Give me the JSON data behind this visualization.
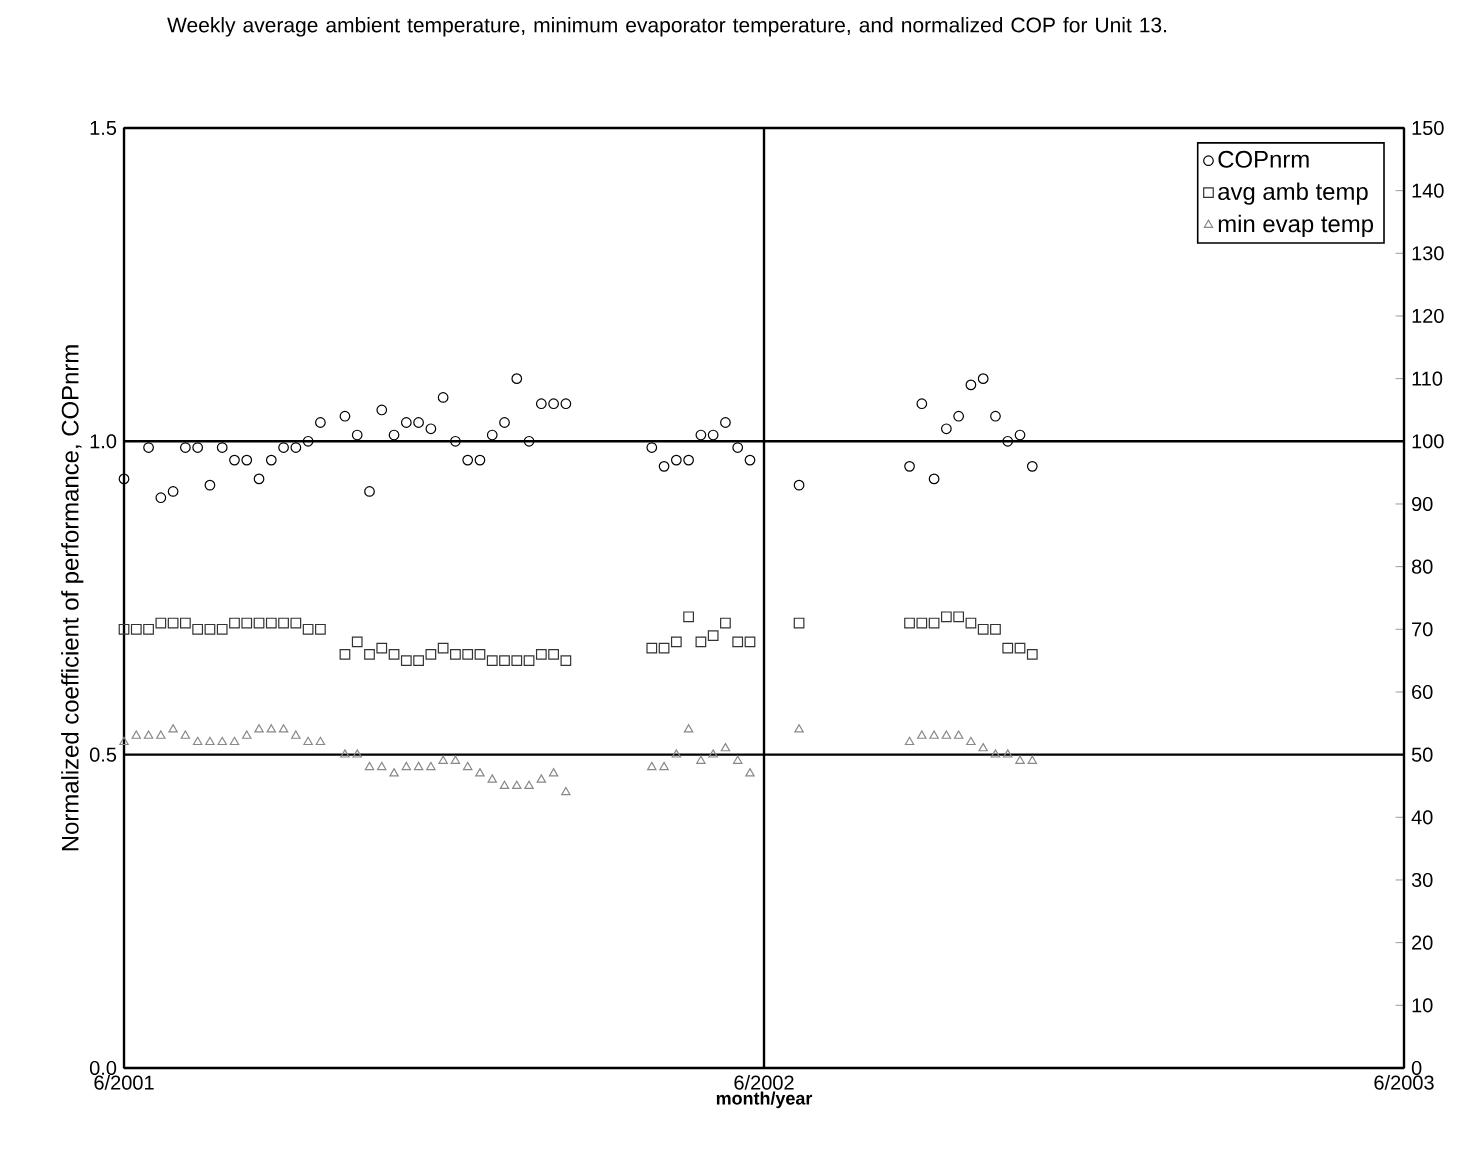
{
  "chart_data": {
    "type": "scatter",
    "title": "Weekly average ambient temperature, minimum evaporator temperature, and normalized COP for Unit 13.",
    "xlabel": "month/year",
    "ylabel": "Normalized coefficient of performance, COPnrm",
    "xlim": [
      "2001-06-01",
      "2003-06-01"
    ],
    "xticks": [
      {
        "value": "2001-06-01",
        "label": "6/2001"
      },
      {
        "value": "2002-06-01",
        "label": "6/2002"
      },
      {
        "value": "2003-06-01",
        "label": "6/2003"
      }
    ],
    "ylim": [
      0,
      1.5
    ],
    "yticks": [
      {
        "value": 0,
        "label": "0.0"
      },
      0.5,
      {
        "value": 1,
        "label": "1.0"
      },
      1.5
    ],
    "y2lim": [
      0,
      150
    ],
    "y2ticks": [
      0,
      10,
      20,
      30,
      40,
      50,
      60,
      70,
      80,
      90,
      100,
      110,
      120,
      130,
      140,
      150
    ],
    "grid": true,
    "legend": "top right",
    "series": [
      {
        "name": "COPnrm",
        "color": "#000000",
        "marker": "circle",
        "x": [
          "2001-06-01",
          "2001-06-15",
          "2001-06-22",
          "2001-06-29",
          "2001-07-06",
          "2001-07-13",
          "2001-07-20",
          "2001-07-27",
          "2001-08-03",
          "2001-08-10",
          "2001-08-17",
          "2001-08-24",
          "2001-08-31",
          "2001-09-07",
          "2001-09-14",
          "2001-09-21",
          "2001-10-05",
          "2001-10-12",
          "2001-10-19",
          "2001-10-26",
          "2001-11-02",
          "2001-11-09",
          "2001-11-16",
          "2001-11-23",
          "2001-11-30",
          "2001-12-07",
          "2001-12-14",
          "2001-12-21",
          "2001-12-28",
          "2002-01-04",
          "2002-01-11",
          "2002-01-18",
          "2002-01-25",
          "2002-02-01",
          "2002-02-08",
          "2002-03-29",
          "2002-04-05",
          "2002-04-12",
          "2002-04-19",
          "2002-04-26",
          "2002-05-03",
          "2002-05-10",
          "2002-05-17",
          "2002-05-24",
          "2002-06-21",
          "2002-08-23",
          "2002-08-30",
          "2002-09-06",
          "2002-09-13",
          "2002-09-20",
          "2002-09-27",
          "2002-10-04",
          "2002-10-11",
          "2002-10-18",
          "2002-10-25",
          "2002-11-01"
        ],
        "values": [
          0.94,
          0.99,
          0.91,
          0.92,
          0.99,
          0.99,
          0.93,
          0.99,
          0.97,
          0.97,
          0.94,
          0.97,
          0.99,
          0.99,
          1.0,
          1.03,
          1.04,
          1.01,
          0.92,
          1.05,
          1.01,
          1.03,
          1.03,
          1.02,
          1.07,
          1.0,
          0.97,
          0.97,
          1.01,
          1.03,
          1.1,
          1.0,
          1.06,
          1.06,
          1.06,
          0.99,
          0.96,
          0.97,
          0.97,
          1.01,
          1.01,
          1.03,
          0.99,
          0.97,
          0.93,
          0.96,
          1.06,
          0.94,
          1.02,
          1.04,
          1.09,
          1.1,
          1.04,
          1.0,
          1.01,
          0.96
        ]
      },
      {
        "name": "avg amb temp",
        "color": "#333333",
        "marker": "square",
        "axis": "y2",
        "x": [
          "2001-06-01",
          "2001-06-08",
          "2001-06-15",
          "2001-06-22",
          "2001-06-29",
          "2001-07-06",
          "2001-07-13",
          "2001-07-20",
          "2001-07-27",
          "2001-08-03",
          "2001-08-10",
          "2001-08-17",
          "2001-08-24",
          "2001-08-31",
          "2001-09-07",
          "2001-09-14",
          "2001-09-21",
          "2001-10-05",
          "2001-10-12",
          "2001-10-19",
          "2001-10-26",
          "2001-11-02",
          "2001-11-09",
          "2001-11-16",
          "2001-11-23",
          "2001-11-30",
          "2001-12-07",
          "2001-12-14",
          "2001-12-21",
          "2001-12-28",
          "2002-01-04",
          "2002-01-11",
          "2002-01-18",
          "2002-01-25",
          "2002-02-01",
          "2002-02-08",
          "2002-03-29",
          "2002-04-05",
          "2002-04-12",
          "2002-04-19",
          "2002-04-26",
          "2002-05-03",
          "2002-05-10",
          "2002-05-17",
          "2002-05-24",
          "2002-06-21",
          "2002-08-23",
          "2002-08-30",
          "2002-09-06",
          "2002-09-13",
          "2002-09-20",
          "2002-09-27",
          "2002-10-04",
          "2002-10-11",
          "2002-10-18",
          "2002-10-25",
          "2002-11-01"
        ],
        "values": [
          70,
          70,
          70,
          71,
          71,
          71,
          70,
          70,
          70,
          71,
          71,
          71,
          71,
          71,
          71,
          70,
          70,
          66,
          68,
          66,
          67,
          66,
          65,
          65,
          66,
          67,
          66,
          66,
          66,
          65,
          65,
          65,
          65,
          66,
          66,
          65,
          67,
          67,
          68,
          72,
          68,
          69,
          71,
          68,
          68,
          71,
          71,
          71,
          71,
          72,
          72,
          71,
          70,
          70,
          67,
          67,
          66
        ]
      },
      {
        "name": "min evap temp",
        "color": "#888888",
        "marker": "triangle",
        "axis": "y2",
        "x": [
          "2001-06-01",
          "2001-06-08",
          "2001-06-15",
          "2001-06-22",
          "2001-06-29",
          "2001-07-06",
          "2001-07-13",
          "2001-07-20",
          "2001-07-27",
          "2001-08-03",
          "2001-08-10",
          "2001-08-17",
          "2001-08-24",
          "2001-08-31",
          "2001-09-07",
          "2001-09-14",
          "2001-09-21",
          "2001-10-05",
          "2001-10-12",
          "2001-10-19",
          "2001-10-26",
          "2001-11-02",
          "2001-11-09",
          "2001-11-16",
          "2001-11-23",
          "2001-11-30",
          "2001-12-07",
          "2001-12-14",
          "2001-12-21",
          "2001-12-28",
          "2002-01-04",
          "2002-01-11",
          "2002-01-18",
          "2002-01-25",
          "2002-02-01",
          "2002-02-08",
          "2002-03-29",
          "2002-04-05",
          "2002-04-12",
          "2002-04-19",
          "2002-04-26",
          "2002-05-03",
          "2002-05-10",
          "2002-05-17",
          "2002-05-24",
          "2002-06-21",
          "2002-08-23",
          "2002-08-30",
          "2002-09-06",
          "2002-09-13",
          "2002-09-20",
          "2002-09-27",
          "2002-10-04",
          "2002-10-11",
          "2002-10-18",
          "2002-10-25",
          "2002-11-01"
        ],
        "values": [
          52,
          53,
          53,
          53,
          54,
          53,
          52,
          52,
          52,
          52,
          53,
          54,
          54,
          54,
          53,
          52,
          52,
          50,
          50,
          48,
          48,
          47,
          48,
          48,
          48,
          49,
          49,
          48,
          47,
          46,
          45,
          45,
          45,
          46,
          47,
          44,
          48,
          48,
          50,
          54,
          49,
          50,
          51,
          49,
          47,
          54,
          52,
          53,
          53,
          53,
          53,
          52,
          51,
          50,
          50,
          49,
          49
        ]
      }
    ]
  }
}
